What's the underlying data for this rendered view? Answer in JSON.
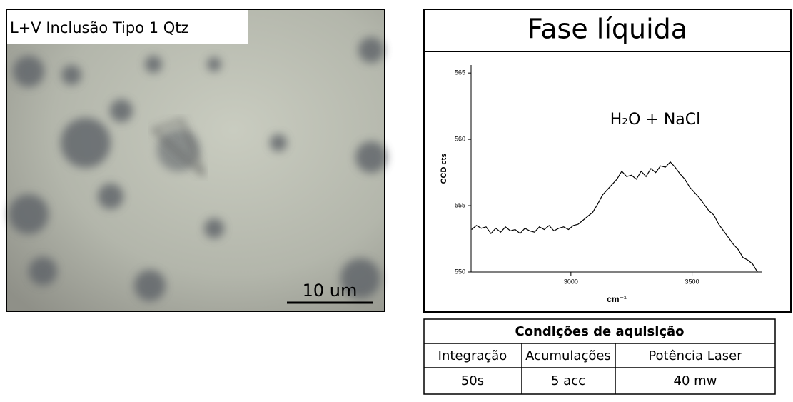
{
  "image": {
    "label": "L+V Inclusão Tipo 1 Qtz",
    "scale_bar": "10 um"
  },
  "panel": {
    "title": "Fase líquida"
  },
  "chart_data": {
    "type": "line",
    "annotation": "H₂O + NaCl",
    "x_label": "cm⁻¹",
    "y_label": "CCD cts",
    "xlim": [
      2588,
      3790
    ],
    "xticks": [
      3000,
      3500
    ],
    "ylim": [
      550,
      565.6
    ],
    "yticks": [
      550,
      555,
      560,
      565
    ],
    "series": [
      {
        "name": "H₂O + NaCl",
        "color": "#000000",
        "x": [
          2590,
          2610,
          2630,
          2650,
          2670,
          2690,
          2710,
          2730,
          2750,
          2770,
          2790,
          2810,
          2830,
          2850,
          2870,
          2890,
          2910,
          2930,
          2950,
          2970,
          2990,
          3010,
          3030,
          3050,
          3070,
          3090,
          3110,
          3130,
          3150,
          3170,
          3190,
          3210,
          3230,
          3250,
          3270,
          3290,
          3310,
          3330,
          3350,
          3370,
          3390,
          3410,
          3430,
          3450,
          3470,
          3490,
          3510,
          3530,
          3550,
          3570,
          3590,
          3610,
          3630,
          3650,
          3670,
          3690,
          3710,
          3730,
          3750,
          3770
        ],
        "values": [
          553.2,
          553.5,
          553.3,
          553.4,
          552.9,
          553.3,
          553.0,
          553.4,
          553.1,
          553.2,
          552.9,
          553.3,
          553.1,
          553.0,
          553.4,
          553.2,
          553.5,
          553.1,
          553.3,
          553.4,
          553.2,
          553.5,
          553.6,
          553.9,
          554.2,
          554.5,
          555.1,
          555.8,
          556.2,
          556.6,
          557.0,
          557.6,
          557.2,
          557.3,
          557.0,
          557.6,
          557.2,
          557.8,
          557.5,
          558.0,
          557.9,
          558.3,
          557.9,
          557.4,
          557.0,
          556.4,
          556.0,
          555.6,
          555.1,
          554.6,
          554.3,
          553.6,
          553.1,
          552.6,
          552.1,
          551.7,
          551.1,
          550.9,
          550.6,
          550.0
        ]
      }
    ]
  },
  "table": {
    "title": "Condições de aquisição",
    "header": [
      "Integração",
      "Acumulações",
      "Potência Laser"
    ],
    "rows": [
      [
        "50s",
        "5 acc",
        "40 mw"
      ]
    ]
  }
}
